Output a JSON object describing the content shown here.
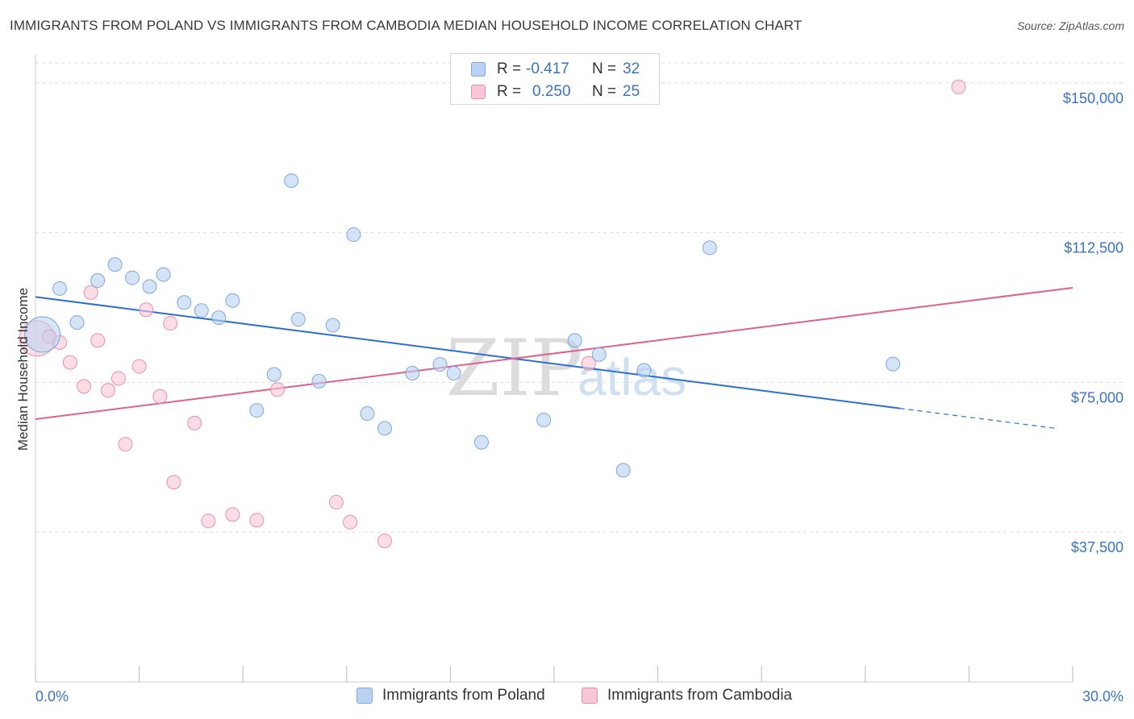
{
  "title": "IMMIGRANTS FROM POLAND VS IMMIGRANTS FROM CAMBODIA MEDIAN HOUSEHOLD INCOME CORRELATION CHART",
  "source": "Source: ZipAtlas.com",
  "watermark": {
    "part1": "ZIP",
    "part2": "atlas"
  },
  "colors": {
    "poland_fill": "#b9d1f2",
    "poland_stroke": "#7ea8de",
    "poland_line": "#2d6fcc",
    "cambodia_fill": "#f8c6d6",
    "cambodia_stroke": "#e88fae",
    "cambodia_line": "#e0608e",
    "grid": "#dddddd",
    "axis_text": "#3b73c4"
  },
  "legend_top": [
    {
      "r_label": "R =",
      "r_value": "-0.417",
      "n_label": "N =",
      "n_value": "32"
    },
    {
      "r_label": "R =",
      "r_value": "0.250",
      "n_label": "N =",
      "n_value": "25"
    }
  ],
  "legend_bottom": [
    "Immigrants from Poland",
    "Immigrants from Cambodia"
  ],
  "chart_data": {
    "type": "scatter",
    "title": "IMMIGRANTS FROM POLAND VS IMMIGRANTS FROM CAMBODIA MEDIAN HOUSEHOLD INCOME CORRELATION CHART",
    "xlabel": "",
    "ylabel": "Median Household Income",
    "xlim": [
      0,
      30
    ],
    "ylim": [
      0,
      155000
    ],
    "x_tick_labels": [
      "0.0%",
      "30.0%"
    ],
    "y_ticks": [
      37500,
      75000,
      112500,
      150000
    ],
    "y_tick_labels": [
      "$37,500",
      "$75,000",
      "$112,500",
      "$150,000"
    ],
    "grid": true,
    "series": [
      {
        "name": "Immigrants from Poland",
        "r": -0.417,
        "n": 32,
        "trend": {
          "x0": 0,
          "y0": 96400,
          "x1": 25.0,
          "y1": 68500,
          "dash_x1": 29.5,
          "dash_y1": 63500
        },
        "points": [
          {
            "x": 0.2,
            "y": 87000,
            "big": true
          },
          {
            "x": 0.7,
            "y": 98500
          },
          {
            "x": 1.2,
            "y": 90000
          },
          {
            "x": 1.8,
            "y": 100500
          },
          {
            "x": 2.3,
            "y": 104500
          },
          {
            "x": 2.8,
            "y": 101200
          },
          {
            "x": 3.3,
            "y": 99000
          },
          {
            "x": 3.7,
            "y": 102000
          },
          {
            "x": 4.3,
            "y": 95000
          },
          {
            "x": 4.8,
            "y": 93000
          },
          {
            "x": 5.3,
            "y": 91200
          },
          {
            "x": 5.7,
            "y": 95500
          },
          {
            "x": 6.4,
            "y": 68000
          },
          {
            "x": 6.9,
            "y": 77000
          },
          {
            "x": 7.4,
            "y": 125500
          },
          {
            "x": 7.6,
            "y": 90800
          },
          {
            "x": 8.2,
            "y": 75300
          },
          {
            "x": 8.6,
            "y": 89300
          },
          {
            "x": 9.2,
            "y": 112000
          },
          {
            "x": 9.6,
            "y": 67200
          },
          {
            "x": 10.1,
            "y": 63500
          },
          {
            "x": 10.9,
            "y": 77300
          },
          {
            "x": 11.7,
            "y": 79500
          },
          {
            "x": 12.1,
            "y": 77300
          },
          {
            "x": 12.9,
            "y": 60000
          },
          {
            "x": 14.7,
            "y": 65600
          },
          {
            "x": 15.6,
            "y": 85500
          },
          {
            "x": 16.3,
            "y": 82000
          },
          {
            "x": 17.0,
            "y": 53000
          },
          {
            "x": 17.6,
            "y": 78000
          },
          {
            "x": 19.5,
            "y": 108700
          },
          {
            "x": 24.8,
            "y": 79600
          }
        ]
      },
      {
        "name": "Immigrants from Cambodia",
        "r": 0.25,
        "n": 25,
        "trend": {
          "x0": 0,
          "y0": 65800,
          "x1": 30.0,
          "y1": 98700
        },
        "points": [
          {
            "x": 0.05,
            "y": 86000,
            "big": true
          },
          {
            "x": 0.4,
            "y": 86500
          },
          {
            "x": 0.7,
            "y": 85000
          },
          {
            "x": 1.0,
            "y": 80000
          },
          {
            "x": 1.4,
            "y": 74000
          },
          {
            "x": 1.6,
            "y": 97500
          },
          {
            "x": 1.8,
            "y": 85500
          },
          {
            "x": 2.1,
            "y": 73000
          },
          {
            "x": 2.4,
            "y": 76000
          },
          {
            "x": 2.6,
            "y": 59500
          },
          {
            "x": 3.0,
            "y": 79000
          },
          {
            "x": 3.2,
            "y": 93200
          },
          {
            "x": 3.6,
            "y": 71500
          },
          {
            "x": 3.9,
            "y": 89800
          },
          {
            "x": 4.0,
            "y": 50000
          },
          {
            "x": 4.6,
            "y": 64800
          },
          {
            "x": 5.0,
            "y": 40300
          },
          {
            "x": 5.7,
            "y": 41900
          },
          {
            "x": 6.4,
            "y": 40500
          },
          {
            "x": 7.0,
            "y": 73200
          },
          {
            "x": 8.7,
            "y": 45000
          },
          {
            "x": 9.1,
            "y": 40000
          },
          {
            "x": 10.1,
            "y": 35300
          },
          {
            "x": 16.0,
            "y": 79800
          },
          {
            "x": 26.7,
            "y": 149000
          }
        ]
      }
    ]
  }
}
